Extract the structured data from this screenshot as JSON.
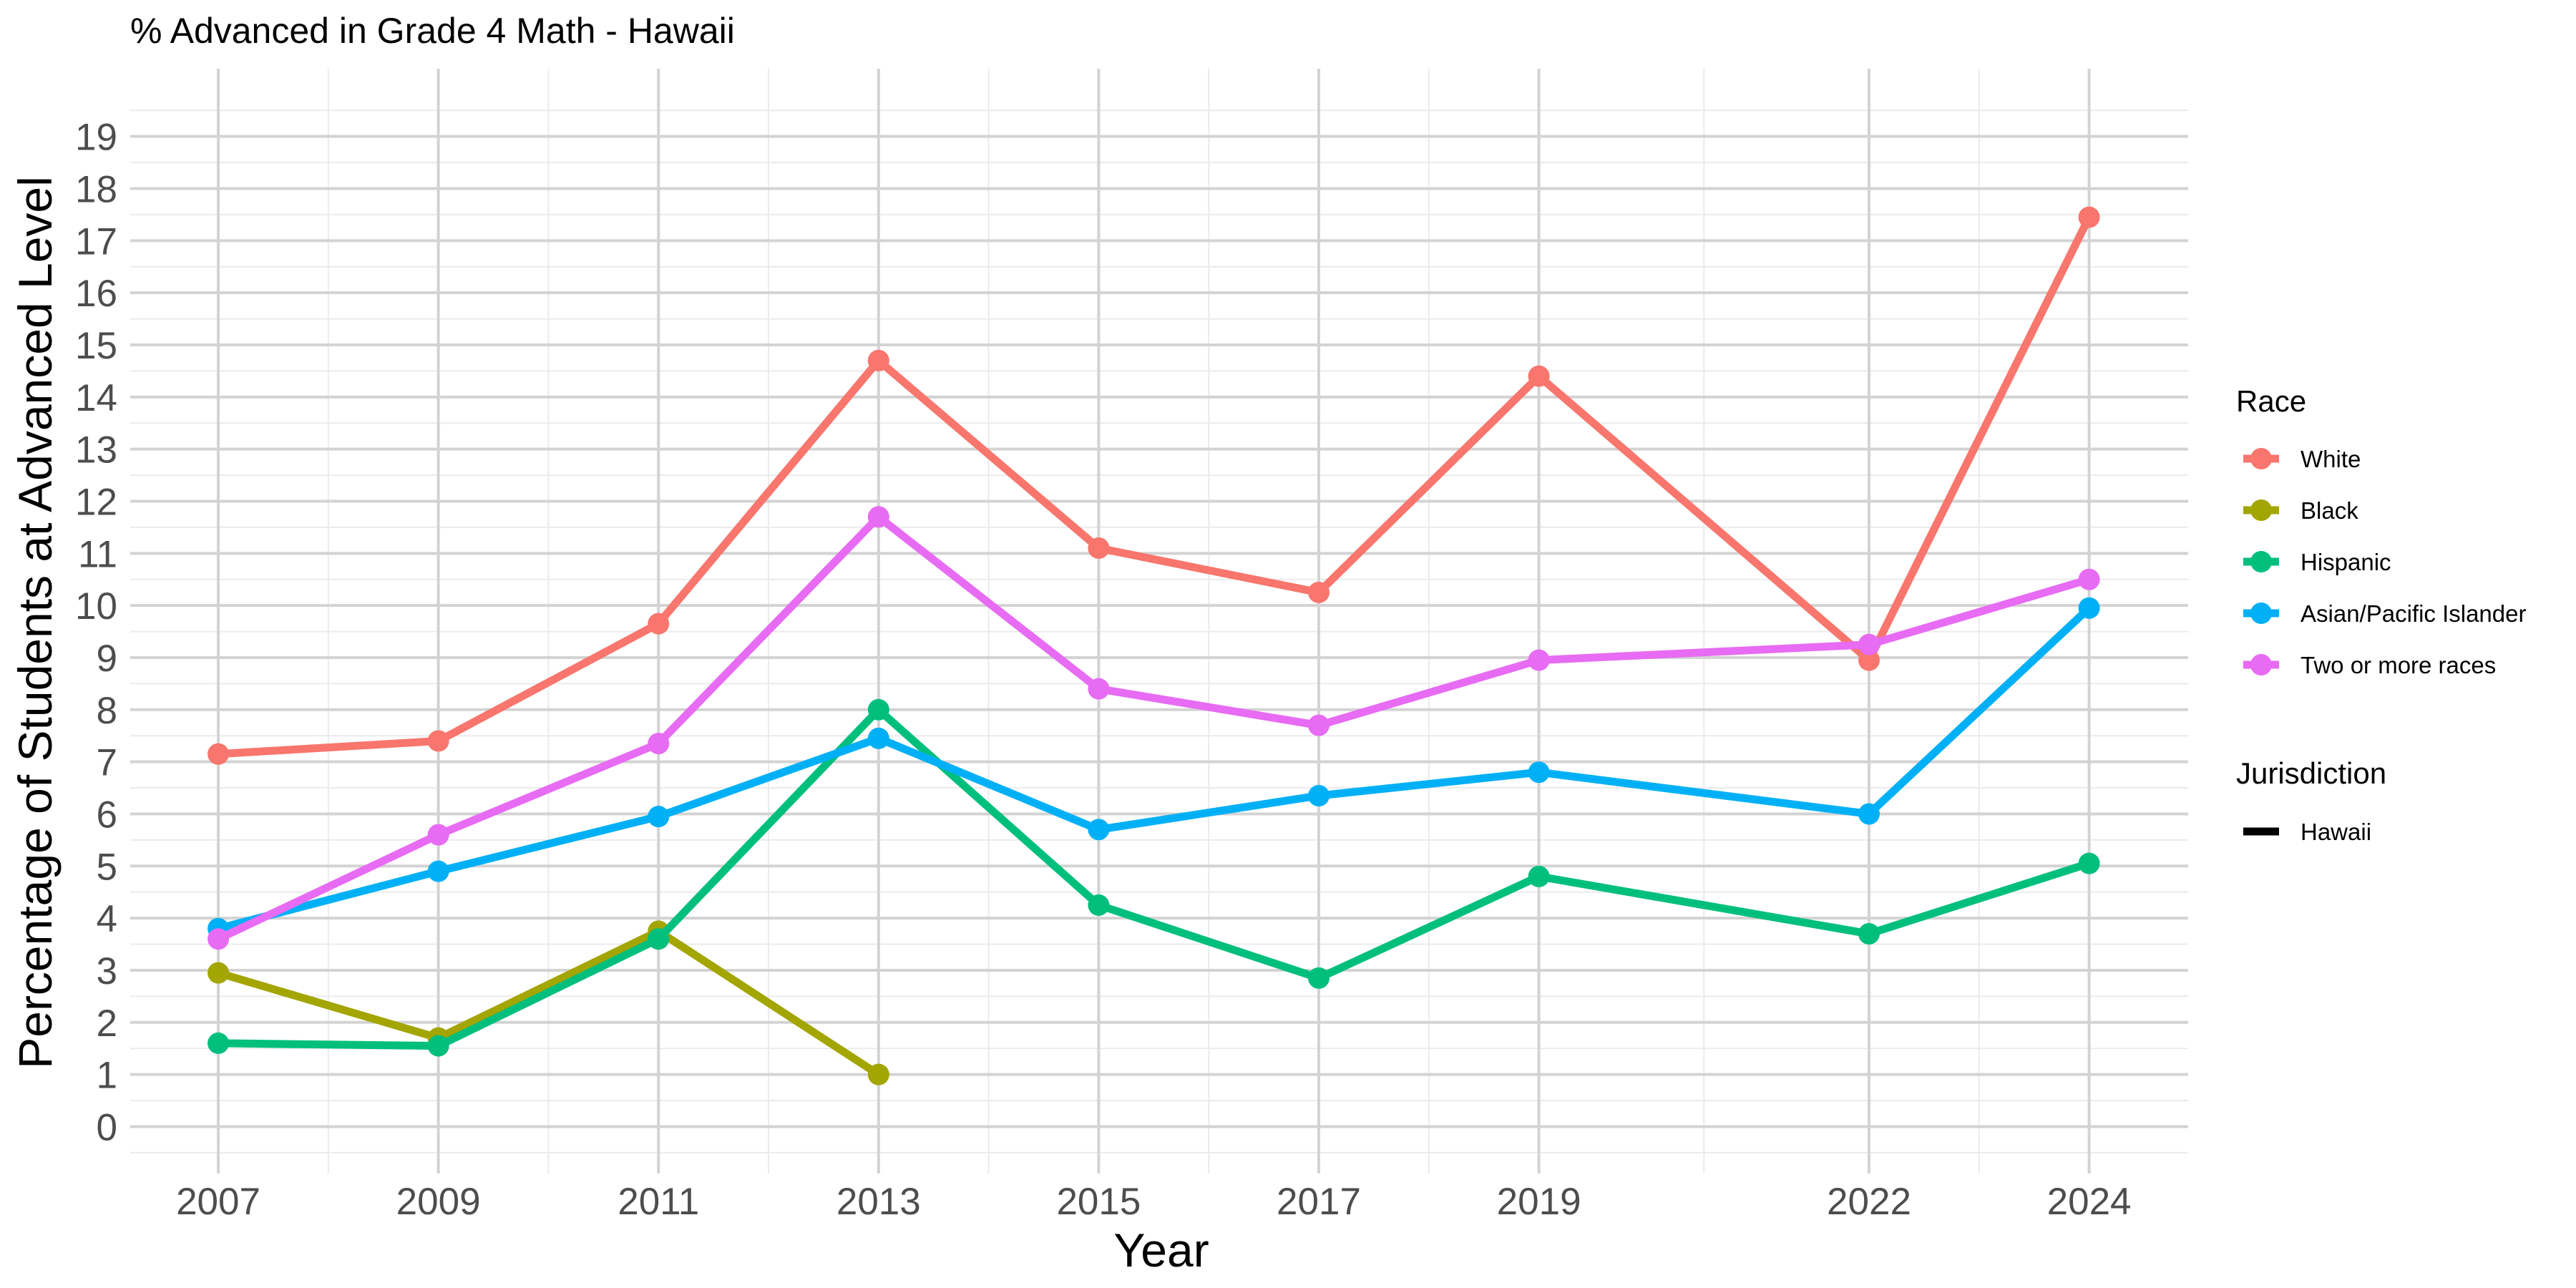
{
  "chart_data": {
    "type": "line",
    "title": "% Advanced in Grade 4 Math - Hawaii",
    "xlabel": "Year",
    "ylabel": "Percentage of Students at Advanced Level",
    "x": [
      2007,
      2009,
      2011,
      2013,
      2015,
      2017,
      2019,
      2022,
      2024
    ],
    "x_ticks": [
      2007,
      2009,
      2011,
      2013,
      2015,
      2017,
      2019,
      2022,
      2024
    ],
    "xlim": [
      2006.2,
      2024.9
    ],
    "ylim": [
      -0.9,
      20.3
    ],
    "y_ticks": [
      0,
      1,
      2,
      3,
      4,
      5,
      6,
      7,
      8,
      9,
      10,
      11,
      12,
      13,
      14,
      15,
      16,
      17,
      18,
      19
    ],
    "grid": true,
    "legend_position": "right",
    "series": [
      {
        "name": "White",
        "color": "#F8766D",
        "values": [
          7.15,
          7.4,
          9.65,
          14.7,
          11.1,
          10.25,
          14.4,
          8.95,
          17.45
        ]
      },
      {
        "name": "Black",
        "color": "#A3A500",
        "values": [
          2.95,
          1.7,
          3.75,
          1.0,
          null,
          null,
          null,
          null,
          null
        ]
      },
      {
        "name": "Hispanic",
        "color": "#00BF7D",
        "values": [
          1.6,
          1.55,
          3.6,
          8.0,
          4.25,
          2.85,
          4.8,
          3.7,
          5.05
        ]
      },
      {
        "name": "Asian/Pacific Islander",
        "color": "#00B0F6",
        "values": [
          3.8,
          4.9,
          5.95,
          7.45,
          5.7,
          6.35,
          6.8,
          6.0,
          9.95
        ]
      },
      {
        "name": "Two or more races",
        "color": "#E76BF3",
        "values": [
          3.6,
          5.6,
          7.35,
          11.7,
          8.4,
          7.7,
          8.95,
          9.25,
          10.5
        ]
      }
    ],
    "legends": [
      {
        "title": "Race",
        "entries": [
          "White",
          "Black",
          "Hispanic",
          "Asian/Pacific Islander",
          "Two or more races"
        ]
      },
      {
        "title": "Jurisdiction",
        "entries": [
          "Hawaii"
        ]
      }
    ]
  }
}
